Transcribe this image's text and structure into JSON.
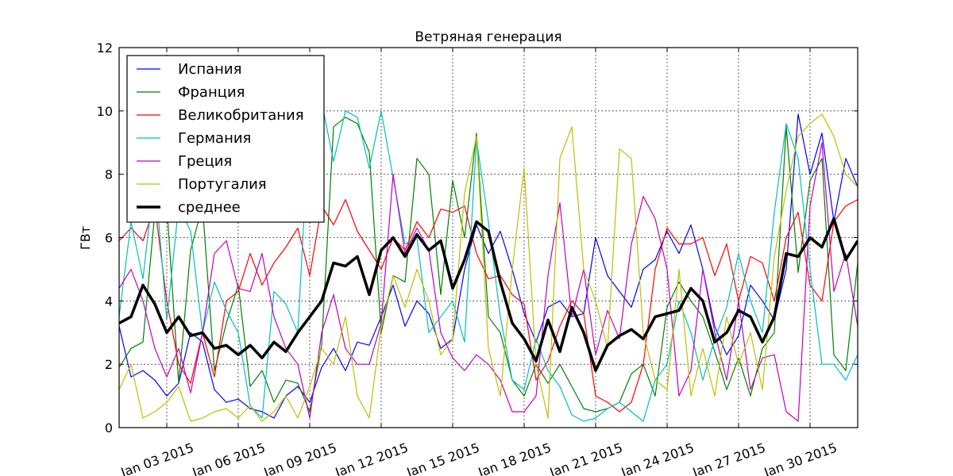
{
  "chart_data": {
    "type": "line",
    "title": "Ветряная генерация",
    "xlabel": "",
    "ylabel": "ГВт",
    "ylim": [
      0,
      12
    ],
    "yticks": [
      0,
      2,
      4,
      6,
      8,
      10,
      12
    ],
    "xlim_days": [
      0,
      31
    ],
    "xtick_days": [
      2,
      5,
      8,
      11,
      14,
      17,
      20,
      23,
      26,
      29
    ],
    "xtick_labels": [
      "Jan 03 2015",
      "Jan 06 2015",
      "Jan 09 2015",
      "Jan 12 2015",
      "Jan 15 2015",
      "Jan 18 2015",
      "Jan 21 2015",
      "Jan 24 2015",
      "Jan 27 2015",
      "Jan 30 2015"
    ],
    "grid": true,
    "legend_position": "upper left",
    "x_unit": "days since Jan 01 2015, sampled every 0.5 day",
    "x": [
      0,
      0.5,
      1,
      1.5,
      2,
      2.5,
      3,
      3.5,
      4,
      4.5,
      5,
      5.5,
      6,
      6.5,
      7,
      7.5,
      8,
      8.5,
      9,
      9.5,
      10,
      10.5,
      11,
      11.5,
      12,
      12.5,
      13,
      13.5,
      14,
      14.5,
      15,
      15.5,
      16,
      16.5,
      17,
      17.5,
      18,
      18.5,
      19,
      19.5,
      20,
      20.5,
      21,
      21.5,
      22,
      22.5,
      23,
      23.5,
      24,
      24.5,
      25,
      25.5,
      26,
      26.5,
      27,
      27.5,
      28,
      28.5,
      29,
      29.5,
      30,
      30.5,
      31
    ],
    "series": [
      {
        "name": "Испания",
        "color": "#0000ff",
        "width": 1.2,
        "values": [
          3.2,
          1.6,
          1.8,
          1.5,
          1.0,
          1.4,
          3.0,
          2.7,
          1.2,
          0.8,
          0.9,
          0.6,
          0.5,
          0.3,
          1.0,
          1.3,
          0.8,
          1.9,
          2.5,
          1.8,
          2.7,
          2.6,
          3.5,
          4.5,
          3.2,
          4.0,
          3.6,
          2.5,
          2.8,
          5.0,
          6.4,
          5.5,
          6.2,
          5.0,
          3.6,
          2.7,
          3.8,
          4.0,
          3.5,
          3.6,
          6.0,
          4.8,
          4.3,
          3.8,
          5.0,
          5.3,
          6.2,
          5.5,
          6.4,
          5.0,
          3.2,
          2.3,
          2.9,
          4.5,
          4.0,
          3.4,
          5.0,
          9.9,
          8.0,
          9.3,
          6.5,
          8.5,
          7.6
        ]
      },
      {
        "name": "Франция",
        "color": "#008000",
        "width": 1.2,
        "values": [
          1.9,
          2.5,
          2.7,
          6.8,
          7.0,
          1.4,
          5.6,
          7.0,
          1.8,
          3.3,
          4.5,
          1.3,
          1.8,
          0.8,
          1.5,
          1.4,
          0.5,
          2.6,
          9.5,
          9.8,
          9.6,
          8.7,
          3.0,
          4.8,
          4.6,
          8.5,
          8.0,
          4.2,
          7.8,
          6.0,
          9.3,
          3.5,
          3.0,
          1.5,
          1.0,
          2.0,
          1.4,
          2.0,
          1.3,
          0.6,
          0.5,
          0.6,
          0.8,
          1.7,
          2.0,
          1.0,
          3.8,
          4.6,
          4.0,
          3.5,
          2.4,
          1.2,
          2.2,
          1.0,
          2.5,
          3.0,
          9.5,
          4.9,
          7.8,
          8.5,
          2.3,
          1.8,
          5.2
        ]
      },
      {
        "name": "Великобритания",
        "color": "#ff0000",
        "width": 1.2,
        "values": [
          5.9,
          6.3,
          5.9,
          7.0,
          4.0,
          2.0,
          1.4,
          3.0,
          1.6,
          4.0,
          4.3,
          5.5,
          4.5,
          5.2,
          5.7,
          6.3,
          4.8,
          7.0,
          6.4,
          7.2,
          6.2,
          5.6,
          5.0,
          6.0,
          5.6,
          6.5,
          6.0,
          6.9,
          6.8,
          7.0,
          5.5,
          4.7,
          4.8,
          4.2,
          3.9,
          1.5,
          2.1,
          3.2,
          4.0,
          3.6,
          1.0,
          0.8,
          0.5,
          0.8,
          2.0,
          5.0,
          6.3,
          5.8,
          5.8,
          6.0,
          4.8,
          5.8,
          4.0,
          5.4,
          5.2,
          4.0,
          6.0,
          6.8,
          4.5,
          4.0,
          6.5,
          7.0,
          7.2
        ]
      },
      {
        "name": "Германия",
        "color": "#00bfbf",
        "width": 1.2,
        "values": [
          3.5,
          6.5,
          4.7,
          8.0,
          3.4,
          7.0,
          6.2,
          3.0,
          4.6,
          3.7,
          3.0,
          0.7,
          0.3,
          4.3,
          3.9,
          3.0,
          10.0,
          10.3,
          8.4,
          10.0,
          9.8,
          8.2,
          10.0,
          7.9,
          5.8,
          6.0,
          3.0,
          3.5,
          4.0,
          2.7,
          9.1,
          6.5,
          3.5,
          1.5,
          1.2,
          2.8,
          1.8,
          1.3,
          0.4,
          0.2,
          0.3,
          0.6,
          0.8,
          0.5,
          0.2,
          1.5,
          2.0,
          4.0,
          3.0,
          1.5,
          2.8,
          3.8,
          5.5,
          4.0,
          3.0,
          6.8,
          9.6,
          8.5,
          5.0,
          2.0,
          2.0,
          1.5,
          2.3
        ]
      },
      {
        "name": "Греция",
        "color": "#bf00bf",
        "width": 1.2,
        "values": [
          4.4,
          5.0,
          4.0,
          2.5,
          1.6,
          2.5,
          1.1,
          3.0,
          5.5,
          5.9,
          4.4,
          4.3,
          5.5,
          3.5,
          2.5,
          2.0,
          0.3,
          3.0,
          4.2,
          2.5,
          2.0,
          2.0,
          3.3,
          8.0,
          5.5,
          6.3,
          5.6,
          3.0,
          2.2,
          1.8,
          2.3,
          2.0,
          1.5,
          0.5,
          0.5,
          1.0,
          4.8,
          7.1,
          3.5,
          5.0,
          2.3,
          3.7,
          2.8,
          5.8,
          7.3,
          6.6,
          5.0,
          1.0,
          1.8,
          5.0,
          3.0,
          1.5,
          4.0,
          1.2,
          2.2,
          2.3,
          0.5,
          0.2,
          7.0,
          9.0,
          4.3,
          5.5,
          3.2
        ]
      },
      {
        "name": "Португалия",
        "color": "#bfbf00",
        "width": 1.2,
        "values": [
          1.2,
          2.0,
          0.3,
          0.5,
          0.8,
          1.3,
          0.2,
          0.3,
          0.5,
          0.6,
          0.3,
          0.7,
          0.2,
          0.5,
          1.0,
          0.3,
          1.3,
          2.5,
          2.0,
          3.5,
          1.0,
          0.3,
          3.2,
          4.8,
          3.8,
          5.0,
          4.0,
          2.3,
          2.8,
          7.4,
          9.2,
          2.5,
          1.0,
          5.0,
          8.2,
          2.0,
          0.3,
          8.5,
          9.5,
          5.0,
          4.0,
          2.5,
          8.8,
          8.5,
          3.0,
          1.5,
          1.2,
          5.0,
          1.0,
          2.5,
          1.0,
          3.5,
          2.0,
          3.0,
          1.2,
          5.4,
          7.5,
          9.2,
          9.6,
          9.9,
          9.2,
          8.0,
          7.6
        ]
      },
      {
        "name": "среднее",
        "color": "#000000",
        "width": 3.5,
        "values": [
          3.3,
          3.5,
          4.5,
          3.9,
          3.0,
          3.5,
          2.9,
          3.0,
          2.5,
          2.6,
          2.3,
          2.6,
          2.2,
          2.7,
          2.4,
          3.0,
          3.5,
          4.0,
          5.2,
          5.1,
          5.4,
          4.2,
          5.6,
          6.0,
          5.4,
          6.1,
          5.6,
          5.9,
          4.4,
          5.3,
          6.5,
          6.2,
          4.6,
          3.3,
          2.8,
          2.1,
          3.4,
          2.4,
          3.8,
          3.0,
          1.8,
          2.6,
          2.9,
          3.1,
          2.8,
          3.5,
          3.6,
          3.7,
          4.4,
          4.0,
          2.7,
          3.0,
          3.7,
          3.5,
          2.7,
          3.5,
          5.5,
          5.4,
          6.0,
          5.7,
          6.6,
          5.3,
          5.9
        ]
      }
    ]
  },
  "legend": {
    "items": [
      "Испания",
      "Франция",
      "Великобритания",
      "Германия",
      "Греция",
      "Португалия",
      "среднее"
    ]
  },
  "axes": {
    "title": "Ветряная генерация",
    "ylabel": "ГВт"
  }
}
